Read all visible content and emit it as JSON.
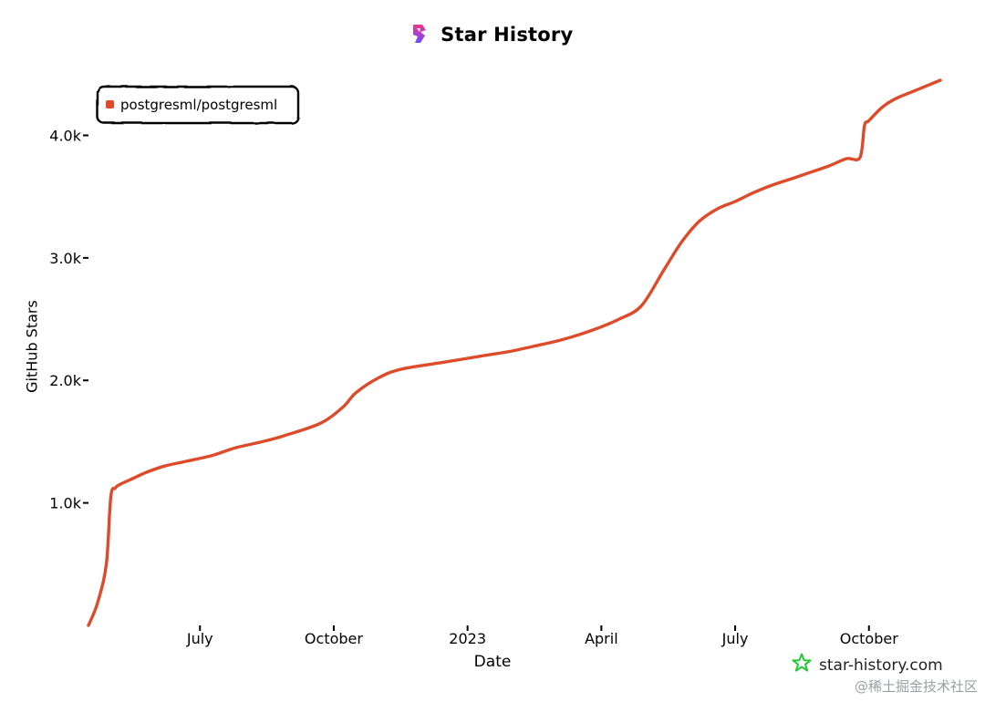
{
  "header": {
    "title": "Star History"
  },
  "footer": {
    "site": "star-history.com",
    "watermark": "@稀土掘金技术社区"
  },
  "colors": {
    "series": "#dd4b2b",
    "logo_top": "#f0358f",
    "logo_bottom": "#6a4cff",
    "site_star": "#20c933"
  },
  "chart_data": {
    "type": "line",
    "title": "Star History",
    "xlabel": "Date",
    "ylabel": "GitHub Stars",
    "x_unit": "months since Apr 2022",
    "xlim": [
      0,
      19.1
    ],
    "ylim": [
      0,
      4450
    ],
    "x_ticks": [
      {
        "x": 2.5,
        "label": "July"
      },
      {
        "x": 5.5,
        "label": "October"
      },
      {
        "x": 8.5,
        "label": "2023"
      },
      {
        "x": 11.5,
        "label": "April"
      },
      {
        "x": 14.5,
        "label": "July"
      },
      {
        "x": 17.5,
        "label": "October"
      }
    ],
    "y_ticks": [
      {
        "y": 1000,
        "label": "1.0k"
      },
      {
        "y": 2000,
        "label": "2.0k"
      },
      {
        "y": 3000,
        "label": "3.0k"
      },
      {
        "y": 4000,
        "label": "4.0k"
      }
    ],
    "legend": {
      "position": "top-left"
    },
    "series": [
      {
        "name": "postgresml/postgresml",
        "x": [
          0,
          0.2,
          0.4,
          0.5,
          0.6,
          0.7,
          1.0,
          1.3,
          1.7,
          2.2,
          2.8,
          3.3,
          3.9,
          4.4,
          5.2,
          5.7,
          6.0,
          6.5,
          7.0,
          8.0,
          8.5,
          9.0,
          9.5,
          10.0,
          10.6,
          11.3,
          11.9,
          12.4,
          12.9,
          13.3,
          13.7,
          14.1,
          14.5,
          14.9,
          15.3,
          15.8,
          16.2,
          16.6,
          17.0,
          17.3,
          17.4,
          17.5,
          17.8,
          18.1,
          18.5,
          19.1
        ],
        "y": [
          0,
          180,
          500,
          1050,
          1120,
          1150,
          1200,
          1250,
          1300,
          1340,
          1390,
          1450,
          1500,
          1550,
          1650,
          1780,
          1900,
          2020,
          2090,
          2150,
          2180,
          2210,
          2240,
          2280,
          2330,
          2410,
          2500,
          2610,
          2900,
          3130,
          3300,
          3400,
          3460,
          3530,
          3590,
          3650,
          3700,
          3750,
          3810,
          3820,
          4080,
          4120,
          4230,
          4300,
          4360,
          4450
        ]
      }
    ]
  }
}
